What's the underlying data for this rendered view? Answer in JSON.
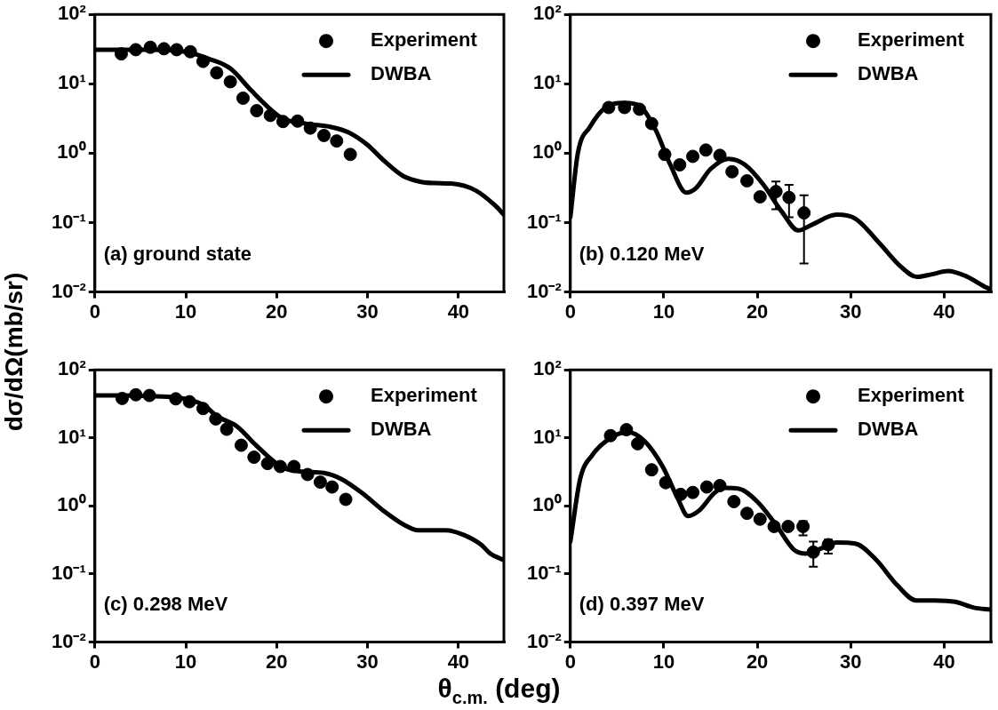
{
  "chart_data": [
    {
      "type": "scatter",
      "ylabel": "dσ/dΩ(mb/sr)",
      "annotations": [
        "(a) ground state"
      ],
      "xlim": [
        0,
        45
      ],
      "xticks": [
        0,
        10,
        20,
        30,
        40
      ],
      "ylim": [
        0.01,
        100
      ],
      "yticks": [
        {
          "value": 0.01,
          "label": "10⁻²"
        },
        {
          "value": 0.1,
          "label": "10⁻¹"
        },
        {
          "value": 1,
          "label": "10⁰"
        },
        {
          "value": 10,
          "label": "10¹"
        },
        {
          "value": 100,
          "label": "10²"
        }
      ],
      "log": "y",
      "legend": "top right",
      "series": [
        {
          "name": "Experiment",
          "type": "scatter",
          "marker": "circle",
          "color": "#000000",
          "x": [
            2.9,
            4.5,
            6.1,
            7.6,
            9.0,
            10.5,
            11.9,
            13.4,
            14.9,
            16.3,
            17.8,
            19.3,
            20.7,
            22.3,
            23.7,
            25.2,
            26.6,
            28.1
          ],
          "values": [
            27,
            31,
            33.6,
            32,
            31,
            29,
            21,
            14.4,
            10.7,
            6.2,
            4.1,
            3.5,
            2.86,
            2.9,
            2.3,
            1.8,
            1.5,
            0.96
          ]
        },
        {
          "name": "DWBA",
          "type": "line",
          "color": "#000000",
          "x": [
            0,
            3,
            6,
            9,
            10.5,
            12.5,
            14.9,
            17.2,
            19.3,
            20.6,
            23.3,
            25.9,
            27.9,
            29.9,
            31.9,
            33.9,
            35.9,
            37.5,
            39.2,
            41.9,
            44,
            45
          ],
          "values": [
            31,
            31,
            31,
            30,
            28,
            23,
            16.6,
            8.0,
            4.3,
            3.2,
            2.65,
            2.4,
            2.0,
            1.35,
            0.76,
            0.47,
            0.385,
            0.37,
            0.365,
            0.29,
            0.178,
            0.13
          ]
        }
      ]
    },
    {
      "type": "scatter",
      "annotations": [
        "(b) 0.120 MeV"
      ],
      "xlim": [
        0,
        45
      ],
      "xticks": [
        0,
        10,
        20,
        30,
        40
      ],
      "ylim": [
        0.01,
        100
      ],
      "yticks": [
        {
          "value": 0.01,
          "label": "10⁻²"
        },
        {
          "value": 0.1,
          "label": "10⁻¹"
        },
        {
          "value": 1,
          "label": "10⁰"
        },
        {
          "value": 10,
          "label": "10¹"
        },
        {
          "value": 100,
          "label": "10²"
        }
      ],
      "log": "y",
      "legend": "top right",
      "series": [
        {
          "name": "Experiment",
          "type": "scatter",
          "marker": "circle",
          "color": "#000000",
          "x": [
            4.1,
            5.8,
            7.4,
            8.7,
            10.1,
            11.7,
            13.1,
            14.5,
            16.0,
            17.3,
            18.9,
            20.3,
            22.0,
            23.4,
            25.0
          ],
          "values": [
            4.55,
            4.55,
            4.3,
            2.67,
            0.96,
            0.68,
            0.9,
            1.11,
            0.93,
            0.54,
            0.4,
            0.235,
            0.28,
            0.23,
            0.138
          ],
          "errors": [
            null,
            null,
            null,
            null,
            null,
            null,
            null,
            null,
            null,
            null,
            null,
            null,
            [
              0.156,
              0.39
            ],
            [
              0.119,
              0.35
            ],
            [
              0.0257,
              0.247
            ]
          ]
        },
        {
          "name": "DWBA",
          "type": "line",
          "color": "#000000",
          "x": [
            0,
            0.8,
            2.1,
            3.7,
            5.8,
            7.4,
            9.1,
            10.7,
            12.4,
            13.4,
            15.0,
            16.9,
            18.7,
            20.6,
            22.6,
            24.4,
            25.9,
            28.5,
            30.5,
            33.1,
            35.4,
            37.1,
            38.7,
            40.4,
            42.3,
            44.6,
            45
          ],
          "values": [
            0.12,
            1.0,
            2.4,
            4.5,
            5.3,
            4.8,
            2.2,
            0.68,
            0.27,
            0.31,
            0.59,
            0.83,
            0.68,
            0.36,
            0.145,
            0.077,
            0.094,
            0.13,
            0.114,
            0.05,
            0.023,
            0.0165,
            0.018,
            0.02,
            0.017,
            0.0115,
            0.011
          ]
        }
      ]
    },
    {
      "type": "scatter",
      "xlabel": "θ$_{c.m.}$ (deg)",
      "annotations": [
        "(c) 0.298 MeV"
      ],
      "xlim": [
        0,
        45
      ],
      "xticks": [
        0,
        10,
        20,
        30,
        40
      ],
      "ylim": [
        0.01,
        100
      ],
      "yticks": [
        {
          "value": 0.01,
          "label": "10⁻²"
        },
        {
          "value": 0.1,
          "label": "10⁻¹"
        },
        {
          "value": 1,
          "label": "10⁰"
        },
        {
          "value": 10,
          "label": "10¹"
        },
        {
          "value": 100,
          "label": "10²"
        }
      ],
      "log": "y",
      "legend": "top right",
      "series": [
        {
          "name": "Experiment",
          "type": "scatter",
          "marker": "circle",
          "color": "#000000",
          "x": [
            3.0,
            4.5,
            6.0,
            8.9,
            10.4,
            11.9,
            13.3,
            14.5,
            16.1,
            17.5,
            19.0,
            20.4,
            21.9,
            23.4,
            24.8,
            26.1,
            27.6
          ],
          "values": [
            38,
            43,
            42,
            37.5,
            34,
            27,
            19,
            13.4,
            7.8,
            5.2,
            4.2,
            3.8,
            3.8,
            2.9,
            2.24,
            1.9,
            1.25
          ]
        },
        {
          "name": "DWBA",
          "type": "line",
          "color": "#000000",
          "x": [
            0,
            3,
            6,
            9,
            10.5,
            12,
            13.4,
            15.7,
            17.6,
            19.3,
            20.6,
            22.9,
            25.2,
            27.1,
            29.4,
            31.7,
            34.0,
            35.6,
            38.6,
            40.5,
            42.5,
            43.5,
            45
          ],
          "values": [
            42,
            42,
            41,
            39,
            36,
            30,
            21,
            14.5,
            8.1,
            5.0,
            3.7,
            3.2,
            3.06,
            2.5,
            1.55,
            0.86,
            0.53,
            0.44,
            0.44,
            0.38,
            0.27,
            0.2,
            0.16
          ]
        }
      ]
    },
    {
      "type": "scatter",
      "annotations": [
        "(d) 0.397 MeV"
      ],
      "xlim": [
        0,
        45
      ],
      "xticks": [
        0,
        10,
        20,
        30,
        40
      ],
      "ylim": [
        0.01,
        100
      ],
      "yticks": [
        {
          "value": 0.01,
          "label": "10⁻²"
        },
        {
          "value": 0.1,
          "label": "10⁻¹"
        },
        {
          "value": 1,
          "label": "10⁰"
        },
        {
          "value": 10,
          "label": "10¹"
        },
        {
          "value": 100,
          "label": "10²"
        }
      ],
      "log": "y",
      "legend": "top right",
      "series": [
        {
          "name": "Experiment",
          "type": "scatter",
          "marker": "circle",
          "color": "#000000",
          "x": [
            4.3,
            6.0,
            7.2,
            8.7,
            10.2,
            11.8,
            13.1,
            14.6,
            16.0,
            17.5,
            18.9,
            20.3,
            21.8,
            23.3,
            24.9,
            26.0,
            27.6
          ],
          "values": [
            10.8,
            13.2,
            8.2,
            3.4,
            2.2,
            1.48,
            1.58,
            1.9,
            1.99,
            1.16,
            0.78,
            0.64,
            0.5,
            0.5,
            0.5,
            0.21,
            0.27
          ],
          "errors": [
            null,
            null,
            null,
            null,
            null,
            null,
            null,
            null,
            null,
            null,
            null,
            null,
            null,
            null,
            [
              0.37,
              0.6
            ],
            [
              0.128,
              0.3
            ],
            [
              0.2,
              0.32
            ]
          ]
        },
        {
          "name": "DWBA",
          "type": "line",
          "color": "#000000",
          "x": [
            0,
            1.05,
            2.35,
            4.3,
            6.1,
            7.9,
            9.9,
            11.5,
            12.6,
            13.8,
            15.4,
            16.4,
            18.0,
            20.0,
            22.0,
            23.9,
            25.2,
            26.9,
            28.5,
            30.5,
            32.7,
            35.0,
            37.0,
            39.0,
            41.2,
            43.2,
            45
          ],
          "values": [
            0.3,
            2.5,
            5.6,
            10,
            12.2,
            9.1,
            3.75,
            1.28,
            0.71,
            0.86,
            1.55,
            1.85,
            1.8,
            1.16,
            0.53,
            0.23,
            0.2,
            0.24,
            0.29,
            0.28,
            0.163,
            0.068,
            0.041,
            0.041,
            0.039,
            0.032,
            0.03
          ]
        }
      ]
    }
  ]
}
